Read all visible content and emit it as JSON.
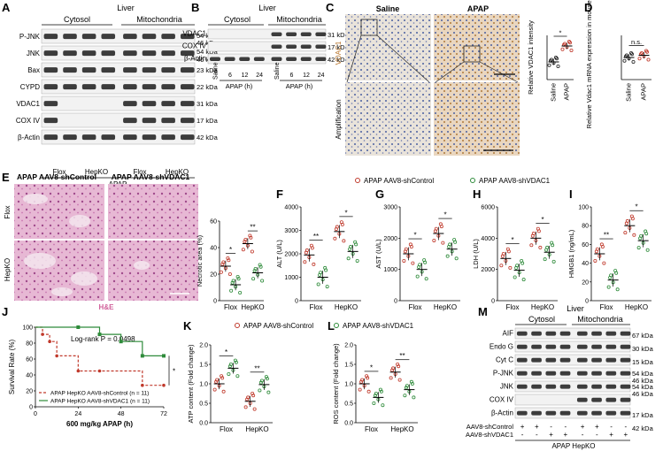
{
  "panel_letters": [
    "A",
    "B",
    "C",
    "D",
    "E",
    "F",
    "G",
    "H",
    "I",
    "J",
    "K",
    "L",
    "M"
  ],
  "panelA": {
    "header": "Liver",
    "fractions": [
      "Cytosol",
      "Mitochondria"
    ],
    "proteins": [
      "P-JNK",
      "JNK",
      "Bax",
      "CYPD",
      "VDAC1",
      "COX IV",
      "β-Actin"
    ],
    "sizes": [
      "54 kDa",
      "46 kDa",
      "54 kDa",
      "46 kDa",
      "23 kDa",
      "22 kDa",
      "31 kDa",
      "17 kDa",
      "42 kDa"
    ],
    "groups": [
      "Flox",
      "HepKO",
      "Flox",
      "HepKO"
    ],
    "treatment": "APAP"
  },
  "panelB": {
    "header": "Liver",
    "fractions": [
      "Cytosol",
      "Mitochondria"
    ],
    "proteins": [
      "VDAC1",
      "COX IV",
      "β-Actin"
    ],
    "sizes": [
      "31 kDa",
      "17 kDa",
      "42 kDa"
    ],
    "lanes": [
      "Saline",
      "6",
      "12",
      "24",
      "Saline",
      "6",
      "12",
      "24"
    ],
    "xlabel": "APAP (h)"
  },
  "panelC": {
    "col_labels": [
      "Saline",
      "APAP"
    ],
    "row_labels": [
      "VDAC1",
      "Amplification"
    ],
    "ylabel": "Relative VDAC1 intensity",
    "sig": "*",
    "categories": [
      "Saline",
      "APAP"
    ]
  },
  "panelD": {
    "ylabel": "Relative Vdac1 mRNA expression in mouse liver",
    "sig": "n.s.",
    "categories": [
      "Saline",
      "APAP"
    ]
  },
  "panelE": {
    "col_labels": [
      "APAP AAV8-shControl",
      "APAP AAV8-shVDAC1"
    ],
    "row_labels": [
      "Flox",
      "HepKO"
    ],
    "stain": "H&E"
  },
  "legend_top": [
    "APAP AAV8-shControl",
    "APAP AAV8-shVDAC1"
  ],
  "legend_bottom": [
    "APAP AAV8-shControl",
    "APAP AAV8-shVDAC1"
  ],
  "colors": {
    "control": "#c0392b",
    "shvdac1": "#2e8b3a"
  },
  "chart_data": [
    {
      "id": "E",
      "type": "scatter",
      "ylabel": "Necrotic area (%)",
      "categories": [
        "Flox",
        "HepKO"
      ],
      "ylim": [
        0,
        60
      ],
      "yticks": [
        "0",
        "20",
        "40",
        "60"
      ],
      "series": [
        {
          "name": "APAP AAV8-shControl",
          "values": [
            26,
            43
          ]
        },
        {
          "name": "APAP AAV8-shVDAC1",
          "values": [
            12,
            21
          ]
        }
      ],
      "sig": [
        "*",
        "**"
      ]
    },
    {
      "id": "F",
      "type": "scatter",
      "ylabel": "ALT (U/L)",
      "categories": [
        "Flox",
        "HepKO"
      ],
      "ylim": [
        0,
        4000
      ],
      "yticks": [
        "0",
        "1000",
        "2000",
        "3000",
        "4000"
      ],
      "series": [
        {
          "name": "APAP AAV8-shControl",
          "values": [
            1950,
            2950
          ]
        },
        {
          "name": "APAP AAV8-shVDAC1",
          "values": [
            1000,
            2100
          ]
        }
      ],
      "sig": [
        "**",
        "*"
      ]
    },
    {
      "id": "G",
      "type": "scatter",
      "ylabel": "AST (U/L)",
      "categories": [
        "Flox",
        "HepKO"
      ],
      "ylim": [
        0,
        3000
      ],
      "yticks": [
        "0",
        "1000",
        "2000",
        "3000"
      ],
      "series": [
        {
          "name": "APAP AAV8-shControl",
          "values": [
            1500,
            2150
          ]
        },
        {
          "name": "APAP AAV8-shVDAC1",
          "values": [
            1000,
            1650
          ]
        }
      ],
      "sig": [
        "*",
        "*"
      ]
    },
    {
      "id": "H",
      "type": "scatter",
      "ylabel": "LDH (U/L)",
      "categories": [
        "Flox",
        "HepKO"
      ],
      "ylim": [
        0,
        6000
      ],
      "yticks": [
        "0",
        "2000",
        "4000",
        "6000"
      ],
      "series": [
        {
          "name": "APAP AAV8-shControl",
          "values": [
            2700,
            4000
          ]
        },
        {
          "name": "APAP AAV8-shVDAC1",
          "values": [
            1950,
            3100
          ]
        }
      ],
      "sig": [
        "*",
        "*"
      ]
    },
    {
      "id": "I",
      "type": "scatter",
      "ylabel": "HMGB1 (ng/mL)",
      "categories": [
        "Flox",
        "HepKO"
      ],
      "ylim": [
        0,
        100
      ],
      "yticks": [
        "0",
        "20",
        "40",
        "60",
        "80",
        "100"
      ],
      "series": [
        {
          "name": "APAP AAV8-shControl",
          "values": [
            50,
            80
          ]
        },
        {
          "name": "APAP AAV8-shVDAC1",
          "values": [
            22,
            64
          ]
        }
      ],
      "sig": [
        "**",
        "*"
      ]
    },
    {
      "id": "K",
      "type": "scatter",
      "ylabel": "ATP content (Fold change)",
      "categories": [
        "Flox",
        "HepKO"
      ],
      "ylim": [
        0,
        2.0
      ],
      "yticks": [
        "0.0",
        "0.5",
        "1.0",
        "1.5",
        "2.0"
      ],
      "series": [
        {
          "name": "APAP AAV8-shControl",
          "values": [
            1.0,
            0.55
          ]
        },
        {
          "name": "APAP AAV8-shVDAC1",
          "values": [
            1.4,
            0.98
          ]
        }
      ],
      "sig": [
        "*",
        "**"
      ]
    },
    {
      "id": "L",
      "type": "scatter",
      "ylabel": "ROS content (Fold change)",
      "categories": [
        "Flox",
        "HepKO"
      ],
      "ylim": [
        0,
        2.0
      ],
      "yticks": [
        "0.0",
        "0.5",
        "1.0",
        "1.5",
        "2.0"
      ],
      "series": [
        {
          "name": "APAP AAV8-shControl",
          "values": [
            1.0,
            1.3
          ]
        },
        {
          "name": "APAP AAV8-shVDAC1",
          "values": [
            0.65,
            0.85
          ]
        }
      ],
      "sig": [
        "*",
        "**"
      ]
    },
    {
      "id": "C",
      "type": "scatter",
      "ylabel": "Relative VDAC1 intensity",
      "categories": [
        "Saline",
        "APAP"
      ],
      "ylim": [
        0,
        2.5
      ],
      "series": [
        {
          "name": "",
          "values": [
            1.0,
            1.9
          ]
        }
      ],
      "sig": [
        "*"
      ]
    },
    {
      "id": "D",
      "type": "scatter",
      "ylabel": "Relative Vdac1 mRNA expression in mouse liver",
      "categories": [
        "Saline",
        "APAP"
      ],
      "ylim": [
        0,
        2.0
      ],
      "series": [
        {
          "name": "",
          "values": [
            1.0,
            1.1
          ]
        }
      ],
      "sig": [
        "n.s."
      ]
    },
    {
      "id": "J",
      "type": "line",
      "title": "",
      "ylabel": "Survival Rate (%)",
      "xlabel": "600 mg/kg APAP (h)",
      "xticks": [
        "0",
        "24",
        "48",
        "72"
      ],
      "yticks": [
        "0",
        "20",
        "40",
        "60",
        "80",
        "100"
      ],
      "xlim": [
        0,
        72
      ],
      "ylim": [
        0,
        100
      ],
      "annotation": "Log-rank P = 0.0498",
      "sig": "*",
      "series": [
        {
          "name": "APAP HepKO AAV8-shControl (n = 11)",
          "x": [
            0,
            4,
            8,
            12,
            24,
            36,
            60,
            72
          ],
          "y": [
            100,
            91,
            82,
            64,
            45,
            45,
            27,
            27
          ]
        },
        {
          "name": "APAP HepKO AAV8-shVDAC1 (n = 11)",
          "x": [
            0,
            24,
            36,
            48,
            60,
            72
          ],
          "y": [
            100,
            100,
            91,
            82,
            64,
            64
          ]
        }
      ]
    }
  ],
  "panelM": {
    "header": "Liver",
    "fractions": [
      "Cytosol",
      "Mitochondria"
    ],
    "proteins": [
      "AIF",
      "Endo G",
      "Cyt C",
      "P-JNK",
      "JNK",
      "COX IV",
      "β-Actin"
    ],
    "sizes": [
      "67 kDa",
      "30 kDa",
      "15 kDa",
      "54 kDa",
      "46 kDa",
      "54 kDa",
      "46 kDa",
      "17 kDa",
      "42 kDa"
    ],
    "row_labels": [
      "AAV8-shControl",
      "AAV8-shVDAC1"
    ],
    "signs_top": [
      "+",
      "+",
      "-",
      "-",
      "+",
      "+",
      "-",
      "-"
    ],
    "signs_bottom": [
      "-",
      "-",
      "+",
      "+",
      "-",
      "-",
      "+",
      "+"
    ],
    "footer": "APAP HepKO"
  }
}
